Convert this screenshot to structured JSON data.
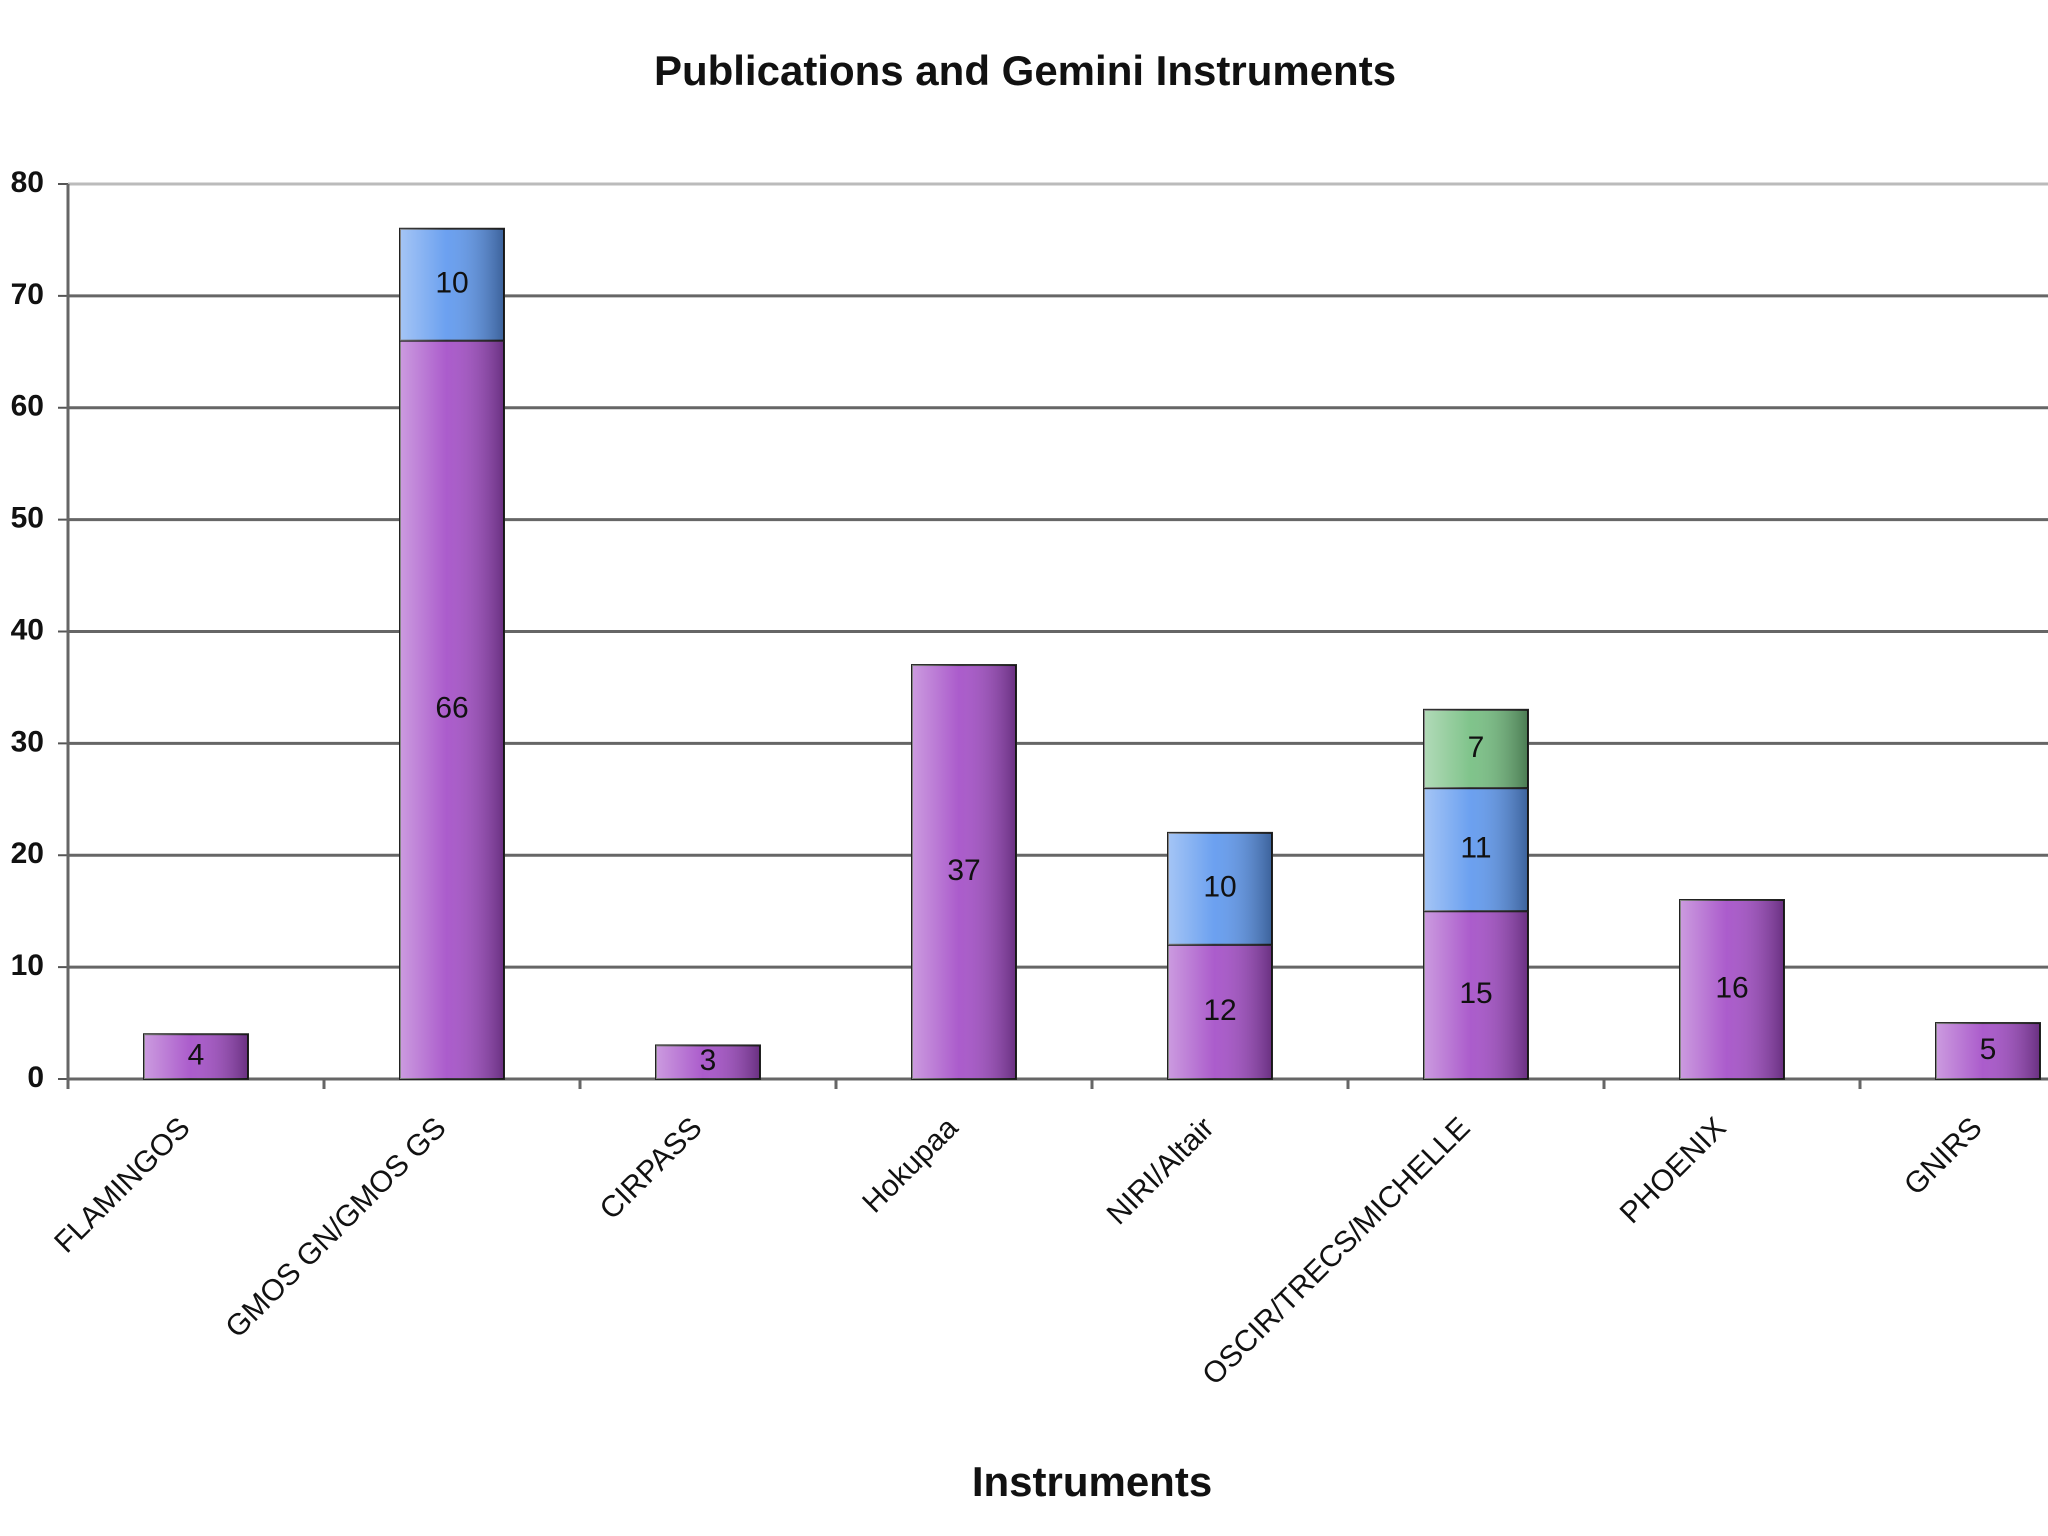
{
  "chart_data": {
    "type": "stacked_bar",
    "title": "Publications and Gemini Instruments",
    "x_label": "Instruments",
    "categories": [
      "FLAMINGOS",
      "GMOS GN/GMOS GS",
      "CIRPASS",
      "Hokupaa",
      "NIRI/Altair",
      "OSCIR/TRECS/MICHELLE",
      "PHOENIX",
      "GNIRS"
    ],
    "series": [
      {
        "color": "#a24ac6",
        "values": [
          4,
          66,
          3,
          37,
          12,
          15,
          16,
          5
        ]
      },
      {
        "color": "#5b96ee",
        "values": [
          null,
          10,
          null,
          null,
          10,
          11,
          null,
          null
        ]
      },
      {
        "color": "#72bd7e",
        "values": [
          null,
          null,
          null,
          null,
          null,
          7,
          null,
          null
        ]
      }
    ],
    "ylim": [
      0,
      80
    ],
    "yticks": [
      0,
      10,
      20,
      30,
      40,
      50,
      60,
      70,
      80
    ],
    "grid": true
  }
}
